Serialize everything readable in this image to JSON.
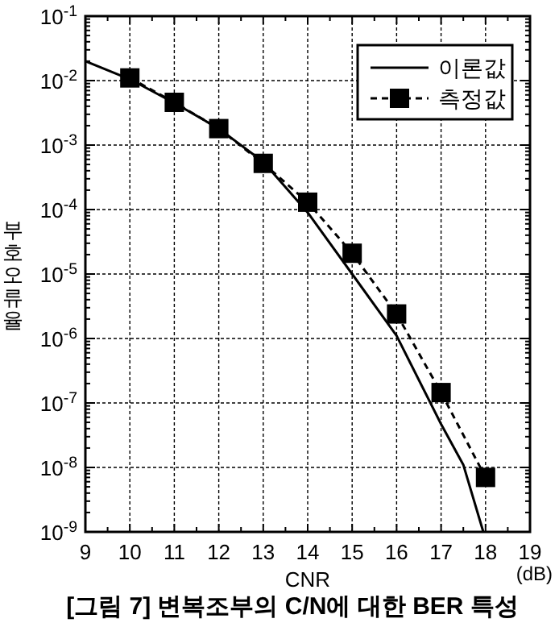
{
  "chart_data": {
    "type": "line",
    "title": "[그림 7] 변복조부의 C/N에 대한 BER 특성",
    "xlabel": "CNR",
    "ylabel": "부호오류율",
    "annotations": [
      "(dB)"
    ],
    "log": "y",
    "grid": true,
    "legend": "top right",
    "xlim": [
      9,
      19
    ],
    "ylim": [
      1e-09,
      0.1
    ],
    "xticks": [
      9,
      10,
      11,
      12,
      13,
      14,
      15,
      16,
      17,
      18,
      19
    ],
    "yticks": [
      {
        "value": 0.1,
        "label": "10$^{-1}$"
      },
      {
        "value": 0.01,
        "label": "10$^{-2}$"
      },
      {
        "value": 0.001,
        "label": "10$^{-3}$"
      },
      {
        "value": 0.0001,
        "label": "10$^{-4}$"
      },
      {
        "value": 1e-05,
        "label": "10$^{-5}$"
      },
      {
        "value": 1e-06,
        "label": "10$^{-6}$"
      },
      {
        "value": 1e-07,
        "label": "10$^{-7}$"
      },
      {
        "value": 1e-08,
        "label": "10$^{-8}$"
      },
      {
        "value": 1e-09,
        "label": "10$^{-9}$"
      }
    ],
    "series": [
      {
        "name": "이론값",
        "color": "#000000",
        "marker": "none",
        "line_style": "solid",
        "x": [
          9,
          10,
          11,
          12,
          13,
          14,
          15,
          16,
          17,
          17.5,
          17.95
        ],
        "values": [
          0.02,
          0.0105,
          0.0045,
          0.0018,
          0.00055,
          9e-05,
          1e-05,
          1.1e-06,
          4.7e-08,
          1.1e-08,
          1e-09
        ]
      },
      {
        "name": "측정값",
        "color": "#000000",
        "marker": "square",
        "line_style": "dashed",
        "x": [
          10,
          11,
          12,
          13,
          14,
          15,
          16,
          17,
          18
        ],
        "values": [
          0.011,
          0.0046,
          0.0018,
          0.00052,
          0.00013,
          2.1e-05,
          2.4e-06,
          1.45e-07,
          7e-09
        ]
      }
    ]
  }
}
